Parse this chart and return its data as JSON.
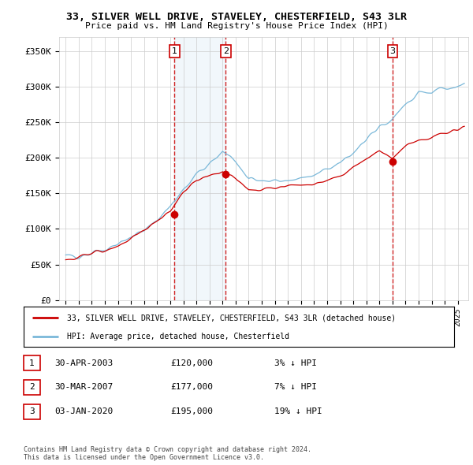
{
  "title": "33, SILVER WELL DRIVE, STAVELEY, CHESTERFIELD, S43 3LR",
  "subtitle": "Price paid vs. HM Land Registry's House Price Index (HPI)",
  "ylabel_ticks": [
    "£0",
    "£50K",
    "£100K",
    "£150K",
    "£200K",
    "£250K",
    "£300K",
    "£350K"
  ],
  "ytick_values": [
    0,
    50000,
    100000,
    150000,
    200000,
    250000,
    300000,
    350000
  ],
  "ylim": [
    0,
    370000
  ],
  "xlim_start": 1994.5,
  "xlim_end": 2025.8,
  "sale_dates": [
    2003.33,
    2007.25,
    2020.01
  ],
  "sale_prices": [
    120000,
    177000,
    195000
  ],
  "sale_labels": [
    "1",
    "2",
    "3"
  ],
  "hpi_color": "#7ab8d9",
  "price_color": "#cc0000",
  "vline_color": "#cc0000",
  "shade_color": "#d8eaf5",
  "background_color": "#ffffff",
  "grid_color": "#cccccc",
  "legend_entries": [
    "33, SILVER WELL DRIVE, STAVELEY, CHESTERFIELD, S43 3LR (detached house)",
    "HPI: Average price, detached house, Chesterfield"
  ],
  "table_data": [
    [
      "1",
      "30-APR-2003",
      "£120,000",
      "3% ↓ HPI"
    ],
    [
      "2",
      "30-MAR-2007",
      "£177,000",
      "7% ↓ HPI"
    ],
    [
      "3",
      "03-JAN-2020",
      "£195,000",
      "19% ↓ HPI"
    ]
  ],
  "footer": "Contains HM Land Registry data © Crown copyright and database right 2024.\nThis data is licensed under the Open Government Licence v3.0."
}
